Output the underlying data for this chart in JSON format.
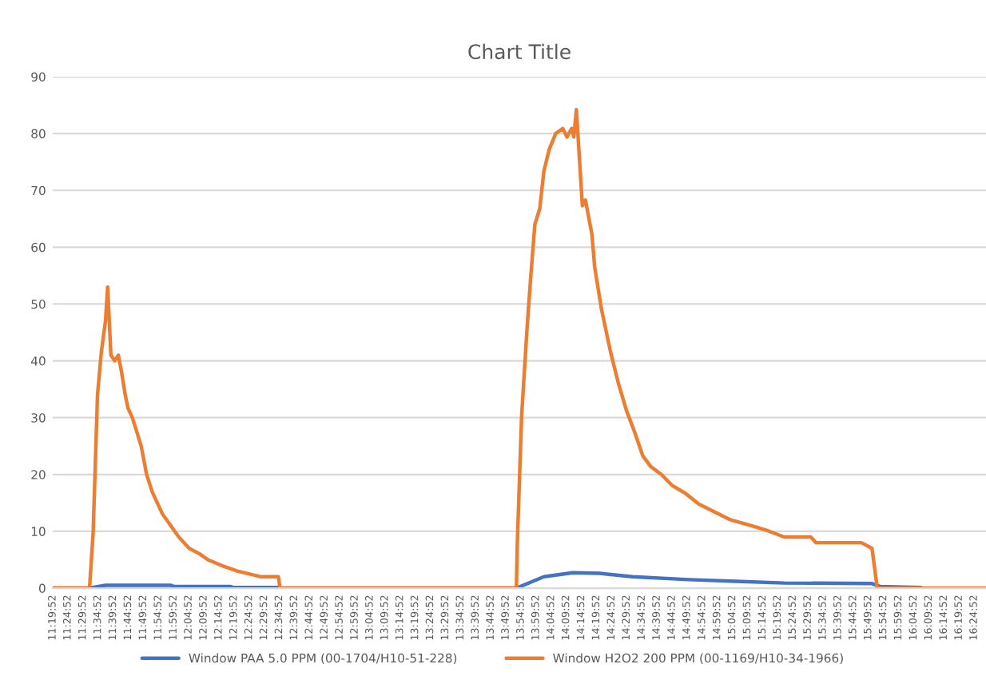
{
  "chart_data": {
    "type": "line",
    "title": "Chart Title",
    "xlim": [
      11.3311,
      16.48
    ],
    "ylim": [
      0,
      90
    ],
    "yticks": [
      0,
      10,
      20,
      30,
      40,
      50,
      60,
      70,
      80,
      90
    ],
    "xticks": [
      {
        "value": 11.3311,
        "label": "11:19:52"
      },
      {
        "value": 11.4144,
        "label": "11:24:52"
      },
      {
        "value": 11.4978,
        "label": "11:29:52"
      },
      {
        "value": 11.5811,
        "label": "11:34:52"
      },
      {
        "value": 11.6644,
        "label": "11:39:52"
      },
      {
        "value": 11.7478,
        "label": "11:44:52"
      },
      {
        "value": 11.8311,
        "label": "11:49:52"
      },
      {
        "value": 11.9144,
        "label": "11:54:52"
      },
      {
        "value": 11.9978,
        "label": "11:59:52"
      },
      {
        "value": 12.0811,
        "label": "12:04:52"
      },
      {
        "value": 12.1644,
        "label": "12:09:52"
      },
      {
        "value": 12.2478,
        "label": "12:14:52"
      },
      {
        "value": 12.3311,
        "label": "12:19:52"
      },
      {
        "value": 12.4144,
        "label": "12:24:52"
      },
      {
        "value": 12.4978,
        "label": "12:29:52"
      },
      {
        "value": 12.5811,
        "label": "12:34:52"
      },
      {
        "value": 12.6644,
        "label": "12:39:52"
      },
      {
        "value": 12.7478,
        "label": "12:44:52"
      },
      {
        "value": 12.8311,
        "label": "12:49:52"
      },
      {
        "value": 12.9144,
        "label": "12:54:52"
      },
      {
        "value": 12.9978,
        "label": "12:59:52"
      },
      {
        "value": 13.0811,
        "label": "13:04:52"
      },
      {
        "value": 13.1644,
        "label": "13:09:52"
      },
      {
        "value": 13.2478,
        "label": "13:14:52"
      },
      {
        "value": 13.3311,
        "label": "13:19:52"
      },
      {
        "value": 13.4144,
        "label": "13:24:52"
      },
      {
        "value": 13.4978,
        "label": "13:29:52"
      },
      {
        "value": 13.5811,
        "label": "13:34:52"
      },
      {
        "value": 13.6644,
        "label": "13:39:52"
      },
      {
        "value": 13.7478,
        "label": "13:44:52"
      },
      {
        "value": 13.8311,
        "label": "13:49:52"
      },
      {
        "value": 13.9144,
        "label": "13:54:52"
      },
      {
        "value": 13.9978,
        "label": "13:59:52"
      },
      {
        "value": 14.0811,
        "label": "14:04:52"
      },
      {
        "value": 14.1644,
        "label": "14:09:52"
      },
      {
        "value": 14.2478,
        "label": "14:14:52"
      },
      {
        "value": 14.3311,
        "label": "14:19:52"
      },
      {
        "value": 14.4144,
        "label": "14:24:52"
      },
      {
        "value": 14.4978,
        "label": "14:29:52"
      },
      {
        "value": 14.5811,
        "label": "14:34:52"
      },
      {
        "value": 14.6644,
        "label": "14:39:52"
      },
      {
        "value": 14.7478,
        "label": "14:44:52"
      },
      {
        "value": 14.8311,
        "label": "14:49:52"
      },
      {
        "value": 14.9144,
        "label": "14:54:52"
      },
      {
        "value": 14.9978,
        "label": "14:59:52"
      },
      {
        "value": 15.0811,
        "label": "15:04:52"
      },
      {
        "value": 15.1644,
        "label": "15:09:52"
      },
      {
        "value": 15.2478,
        "label": "15:14:52"
      },
      {
        "value": 15.3311,
        "label": "15:19:52"
      },
      {
        "value": 15.4144,
        "label": "15:24:52"
      },
      {
        "value": 15.4978,
        "label": "15:29:52"
      },
      {
        "value": 15.5811,
        "label": "15:34:52"
      },
      {
        "value": 15.6644,
        "label": "15:39:52"
      },
      {
        "value": 15.7478,
        "label": "15:44:52"
      },
      {
        "value": 15.8311,
        "label": "15:49:52"
      },
      {
        "value": 15.9144,
        "label": "15:54:52"
      },
      {
        "value": 15.9978,
        "label": "15:59:52"
      },
      {
        "value": 16.0811,
        "label": "16:04:52"
      },
      {
        "value": 16.1644,
        "label": "16:09:52"
      },
      {
        "value": 16.2478,
        "label": "16:14:52"
      },
      {
        "value": 16.3311,
        "label": "16:19:52"
      },
      {
        "value": 16.4144,
        "label": "16:24:52"
      }
    ],
    "grid": "y",
    "legend": "bottom",
    "marker": "none",
    "line_style": "solid",
    "series": [
      {
        "name": "Window PAA 5.0 PPM (00-1704/H10-51-228)",
        "color": "#4472c4",
        "x": [
          11.3311,
          11.534,
          11.622,
          11.98,
          12.0,
          12.31,
          12.33,
          12.576,
          12.585,
          13.889,
          14.041,
          14.2,
          14.35,
          14.53,
          14.84,
          15.1,
          15.366,
          15.851,
          15.895,
          16.12
        ],
        "values": [
          0,
          0,
          0.5,
          0.5,
          0.3,
          0.3,
          0.1,
          0.1,
          0,
          0,
          2,
          2.7,
          2.6,
          2,
          1.5,
          1.2,
          0.9,
          0.8,
          0.3,
          0.1
        ]
      },
      {
        "name": "Window H2O2 200 PPM (00-1169/H10-34-1966)",
        "color": "#ed7d31",
        "x": [
          11.3311,
          11.534,
          11.554,
          11.578,
          11.599,
          11.622,
          11.634,
          11.643,
          11.652,
          11.673,
          11.693,
          11.711,
          11.731,
          11.746,
          11.77,
          11.79,
          11.819,
          11.849,
          11.879,
          11.908,
          11.937,
          11.982,
          12.026,
          12.084,
          12.143,
          12.187,
          12.261,
          12.349,
          12.481,
          12.576,
          12.585,
          13.889,
          13.894,
          13.918,
          13.947,
          13.968,
          13.991,
          14.018,
          14.041,
          14.07,
          14.106,
          14.145,
          14.168,
          14.194,
          14.206,
          14.22,
          14.232,
          14.253,
          14.27,
          14.306,
          14.321,
          14.359,
          14.409,
          14.453,
          14.497,
          14.541,
          14.586,
          14.63,
          14.689,
          14.747,
          14.821,
          14.895,
          14.983,
          15.072,
          15.174,
          15.277,
          15.366,
          15.513,
          15.542,
          15.792,
          15.851,
          15.88,
          16.48
        ],
        "values": [
          0,
          0,
          9.8,
          34,
          41.5,
          47,
          53,
          47,
          41,
          40,
          41,
          38,
          34,
          31.7,
          30,
          28,
          25,
          20,
          17,
          15,
          13,
          11,
          9,
          7,
          6,
          5,
          4,
          3,
          2,
          2,
          0,
          0,
          7.8,
          30.3,
          45.3,
          54.7,
          64,
          66.8,
          73.4,
          77.2,
          80,
          80.9,
          79.4,
          80.9,
          79.4,
          84.2,
          78.1,
          67.3,
          68.3,
          62.2,
          56.5,
          49,
          41.5,
          35.9,
          31.2,
          27.5,
          23.3,
          21.4,
          20,
          18.1,
          16.7,
          14.8,
          13.4,
          12,
          11.1,
          10.1,
          9,
          9,
          8,
          8,
          7,
          0,
          0
        ]
      }
    ]
  }
}
